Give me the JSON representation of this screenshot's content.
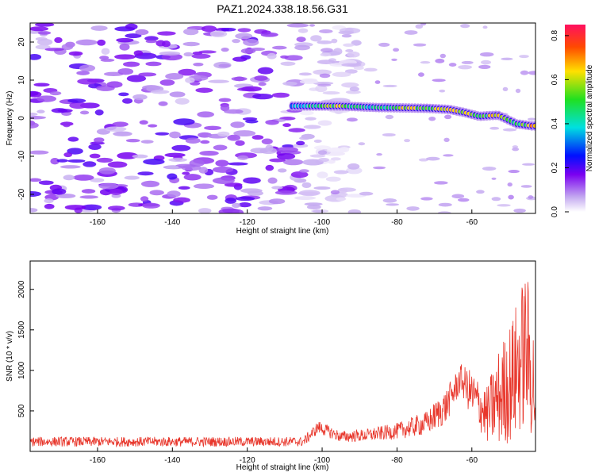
{
  "figure_title": "PAZ1.2024.338.18.56.G31",
  "chart_data": [
    {
      "type": "heatmap",
      "xlabel": "Height of straight line (km)",
      "ylabel": "Frequency (Hz)",
      "xlim": [
        -178,
        -43
      ],
      "ylim": [
        -25,
        25
      ],
      "x_ticks": [
        -160,
        -140,
        -120,
        -100,
        -80,
        -60
      ],
      "y_ticks": [
        -20,
        -10,
        0,
        10,
        20
      ],
      "colorbar": {
        "label": "Normalized spectral amplitude",
        "range": [
          0,
          0.85
        ],
        "ticks": [
          0.0,
          0.2,
          0.4,
          0.6,
          0.8
        ]
      },
      "noise_region": {
        "x": [
          -178,
          -105
        ],
        "y": [
          -25,
          25
        ],
        "amplitude": 0.15
      },
      "ridge": [
        {
          "x": -108,
          "f": 3.2,
          "amp": 0.35
        },
        {
          "x": -100,
          "f": 3.2,
          "amp": 0.55
        },
        {
          "x": -95,
          "f": 3.2,
          "amp": 0.65
        },
        {
          "x": -90,
          "f": 3.0,
          "amp": 0.45
        },
        {
          "x": -85,
          "f": 2.8,
          "amp": 0.45
        },
        {
          "x": -78,
          "f": 2.7,
          "amp": 0.65
        },
        {
          "x": -72,
          "f": 2.6,
          "amp": 0.6
        },
        {
          "x": -66,
          "f": 2.3,
          "amp": 0.75
        },
        {
          "x": -62,
          "f": 1.5,
          "amp": 0.65
        },
        {
          "x": -58,
          "f": 0.5,
          "amp": 0.55
        },
        {
          "x": -53,
          "f": 0.8,
          "amp": 0.7
        },
        {
          "x": -48,
          "f": -1.5,
          "amp": 0.5
        },
        {
          "x": -44,
          "f": -2.0,
          "amp": 0.7
        }
      ]
    },
    {
      "type": "line",
      "xlabel": "Height of straight line (km)",
      "ylabel": "SNR (10 * v/v)",
      "xlim": [
        -178,
        -43
      ],
      "ylim": [
        0,
        2350
      ],
      "x_ticks": [
        -160,
        -140,
        -120,
        -100,
        -80,
        -60
      ],
      "y_ticks": [
        500,
        1000,
        1500,
        2000
      ],
      "line_color": "#e8372c",
      "envelope": [
        {
          "x": -178,
          "mean": 120,
          "amp": 60
        },
        {
          "x": -105,
          "mean": 120,
          "amp": 60
        },
        {
          "x": -101,
          "mean": 300,
          "amp": 80
        },
        {
          "x": -95,
          "mean": 180,
          "amp": 70
        },
        {
          "x": -88,
          "mean": 200,
          "amp": 80
        },
        {
          "x": -80,
          "mean": 250,
          "amp": 100
        },
        {
          "x": -72,
          "mean": 350,
          "amp": 150
        },
        {
          "x": -67,
          "mean": 550,
          "amp": 220
        },
        {
          "x": -63,
          "mean": 900,
          "amp": 180
        },
        {
          "x": -60,
          "mean": 700,
          "amp": 300
        },
        {
          "x": -56,
          "mean": 450,
          "amp": 350
        },
        {
          "x": -53,
          "mean": 650,
          "amp": 600
        },
        {
          "x": -49,
          "mean": 900,
          "amp": 800
        },
        {
          "x": -45.5,
          "mean": 1300,
          "amp": 1000
        },
        {
          "x": -43,
          "mean": 700,
          "amp": 700
        }
      ]
    }
  ]
}
